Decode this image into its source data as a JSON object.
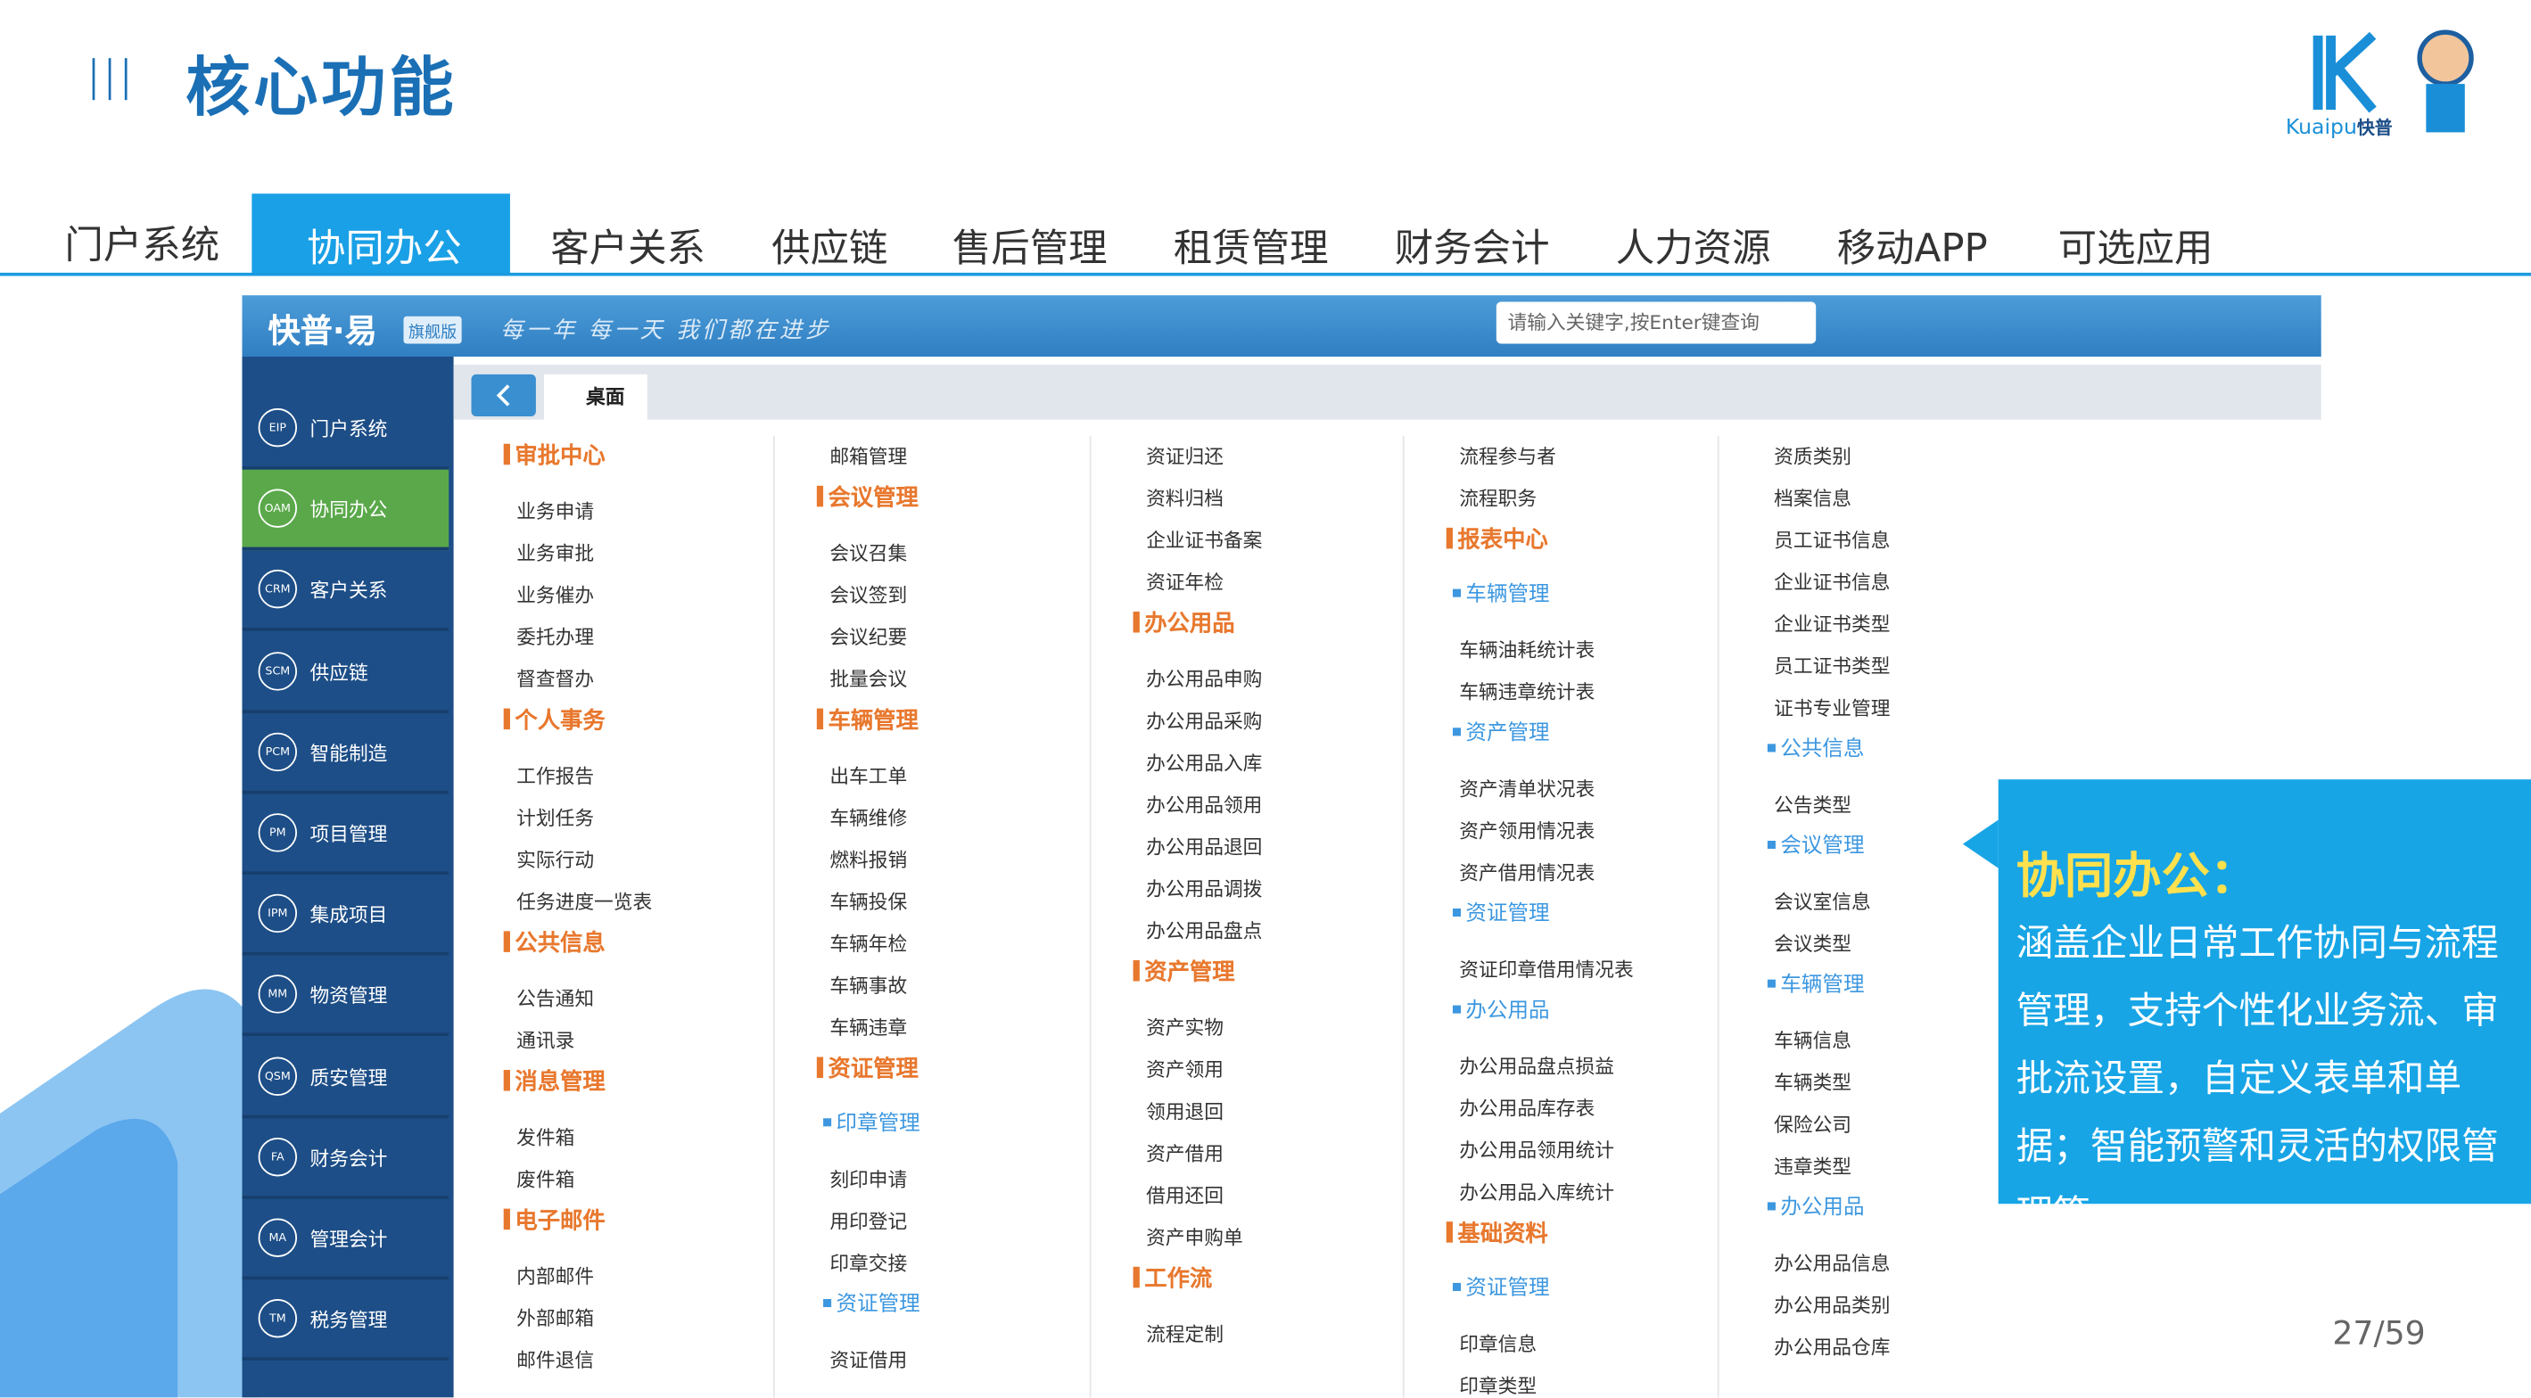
{
  "header": {
    "title": "核心功能",
    "logo_text": "Kuaipu",
    "logo_brand": "快普"
  },
  "tabs": {
    "items": [
      "门户系统",
      "协同办公",
      "客户关系",
      "供应链",
      "售后管理",
      "租赁管理",
      "财务会计",
      "人力资源",
      "移动APP",
      "可选应用"
    ],
    "active": 1
  },
  "app": {
    "brand": "快普·易",
    "edition": "旗舰版",
    "slogan": "每一年 每一天 我们都在进步",
    "search_placeholder": "请输入关键字,按Enter键查询",
    "desk_tab": "桌面"
  },
  "sidebar": {
    "active": 1,
    "items": [
      {
        "code": "EIP",
        "label": "门户系统"
      },
      {
        "code": "OAM",
        "label": "协同办公"
      },
      {
        "code": "CRM",
        "label": "客户关系"
      },
      {
        "code": "SCM",
        "label": "供应链"
      },
      {
        "code": "PCM",
        "label": "智能制造"
      },
      {
        "code": "PM",
        "label": "项目管理"
      },
      {
        "code": "IPM",
        "label": "集成项目"
      },
      {
        "code": "MM",
        "label": "物资管理"
      },
      {
        "code": "QSM",
        "label": "质安管理"
      },
      {
        "code": "FA",
        "label": "财务会计"
      },
      {
        "code": "MA",
        "label": "管理会计"
      },
      {
        "code": "TM",
        "label": "税务管理"
      }
    ]
  },
  "menu": {
    "columns": [
      [
        {
          "text": "审批中心",
          "kind": "h"
        },
        {
          "text": "业务申请",
          "kind": "i"
        },
        {
          "text": "业务审批",
          "kind": "i"
        },
        {
          "text": "业务催办",
          "kind": "i"
        },
        {
          "text": "委托办理",
          "kind": "i"
        },
        {
          "text": "督查督办",
          "kind": "i"
        },
        {
          "text": "个人事务",
          "kind": "h"
        },
        {
          "text": "工作报告",
          "kind": "i"
        },
        {
          "text": "计划任务",
          "kind": "i"
        },
        {
          "text": "实际行动",
          "kind": "i"
        },
        {
          "text": "任务进度一览表",
          "kind": "i"
        },
        {
          "text": "公共信息",
          "kind": "h"
        },
        {
          "text": "公告通知",
          "kind": "i"
        },
        {
          "text": "通讯录",
          "kind": "i"
        },
        {
          "text": "消息管理",
          "kind": "h"
        },
        {
          "text": "发件箱",
          "kind": "i"
        },
        {
          "text": "废件箱",
          "kind": "i"
        },
        {
          "text": "电子邮件",
          "kind": "h"
        },
        {
          "text": "内部邮件",
          "kind": "i"
        },
        {
          "text": "外部邮箱",
          "kind": "i"
        },
        {
          "text": "邮件退信",
          "kind": "i"
        }
      ],
      [
        {
          "text": "邮箱管理",
          "kind": "i"
        },
        {
          "text": "会议管理",
          "kind": "h"
        },
        {
          "text": "会议召集",
          "kind": "i"
        },
        {
          "text": "会议签到",
          "kind": "i"
        },
        {
          "text": "会议纪要",
          "kind": "i"
        },
        {
          "text": "批量会议",
          "kind": "i"
        },
        {
          "text": "车辆管理",
          "kind": "h"
        },
        {
          "text": "出车工单",
          "kind": "i"
        },
        {
          "text": "车辆维修",
          "kind": "i"
        },
        {
          "text": "燃料报销",
          "kind": "i"
        },
        {
          "text": "车辆投保",
          "kind": "i"
        },
        {
          "text": "车辆年检",
          "kind": "i"
        },
        {
          "text": "车辆事故",
          "kind": "i"
        },
        {
          "text": "车辆违章",
          "kind": "i"
        },
        {
          "text": "资证管理",
          "kind": "h"
        },
        {
          "text": "印章管理",
          "kind": "s"
        },
        {
          "text": "刻印申请",
          "kind": "i"
        },
        {
          "text": "用印登记",
          "kind": "i"
        },
        {
          "text": "印章交接",
          "kind": "i"
        },
        {
          "text": "资证管理",
          "kind": "s"
        },
        {
          "text": "资证借用",
          "kind": "i"
        }
      ],
      [
        {
          "text": "资证归还",
          "kind": "i"
        },
        {
          "text": "资料归档",
          "kind": "i"
        },
        {
          "text": "企业证书备案",
          "kind": "i"
        },
        {
          "text": "资证年检",
          "kind": "i"
        },
        {
          "text": "办公用品",
          "kind": "h"
        },
        {
          "text": "办公用品申购",
          "kind": "i"
        },
        {
          "text": "办公用品采购",
          "kind": "i"
        },
        {
          "text": "办公用品入库",
          "kind": "i"
        },
        {
          "text": "办公用品领用",
          "kind": "i"
        },
        {
          "text": "办公用品退回",
          "kind": "i"
        },
        {
          "text": "办公用品调拨",
          "kind": "i"
        },
        {
          "text": "办公用品盘点",
          "kind": "i"
        },
        {
          "text": "资产管理",
          "kind": "h"
        },
        {
          "text": "资产实物",
          "kind": "i"
        },
        {
          "text": "资产领用",
          "kind": "i"
        },
        {
          "text": "领用退回",
          "kind": "i"
        },
        {
          "text": "资产借用",
          "kind": "i"
        },
        {
          "text": "借用还回",
          "kind": "i"
        },
        {
          "text": "资产申购单",
          "kind": "i"
        },
        {
          "text": "工作流",
          "kind": "h"
        },
        {
          "text": "流程定制",
          "kind": "i"
        }
      ],
      [
        {
          "text": "流程参与者",
          "kind": "i"
        },
        {
          "text": "流程职务",
          "kind": "i"
        },
        {
          "text": "报表中心",
          "kind": "h"
        },
        {
          "text": "车辆管理",
          "kind": "s"
        },
        {
          "text": "车辆油耗统计表",
          "kind": "i"
        },
        {
          "text": "车辆违章统计表",
          "kind": "i"
        },
        {
          "text": "资产管理",
          "kind": "s"
        },
        {
          "text": "资产清单状况表",
          "kind": "i"
        },
        {
          "text": "资产领用情况表",
          "kind": "i"
        },
        {
          "text": "资产借用情况表",
          "kind": "i"
        },
        {
          "text": "资证管理",
          "kind": "s"
        },
        {
          "text": "资证印章借用情况表",
          "kind": "i"
        },
        {
          "text": "办公用品",
          "kind": "s"
        },
        {
          "text": "办公用品盘点损益",
          "kind": "i"
        },
        {
          "text": "办公用品库存表",
          "kind": "i"
        },
        {
          "text": "办公用品领用统计",
          "kind": "i"
        },
        {
          "text": "办公用品入库统计",
          "kind": "i"
        },
        {
          "text": "基础资料",
          "kind": "h"
        },
        {
          "text": "资证管理",
          "kind": "s"
        },
        {
          "text": "印章信息",
          "kind": "i"
        },
        {
          "text": "印章类型",
          "kind": "i"
        }
      ],
      [
        {
          "text": "资质类别",
          "kind": "i"
        },
        {
          "text": "档案信息",
          "kind": "i"
        },
        {
          "text": "员工证书信息",
          "kind": "i"
        },
        {
          "text": "企业证书信息",
          "kind": "i"
        },
        {
          "text": "企业证书类型",
          "kind": "i"
        },
        {
          "text": "员工证书类型",
          "kind": "i"
        },
        {
          "text": "证书专业管理",
          "kind": "i"
        },
        {
          "text": "公共信息",
          "kind": "s"
        },
        {
          "text": "公告类型",
          "kind": "i"
        },
        {
          "text": "会议管理",
          "kind": "s"
        },
        {
          "text": "会议室信息",
          "kind": "i"
        },
        {
          "text": "会议类型",
          "kind": "i"
        },
        {
          "text": "车辆管理",
          "kind": "s"
        },
        {
          "text": "车辆信息",
          "kind": "i"
        },
        {
          "text": "车辆类型",
          "kind": "i"
        },
        {
          "text": "保险公司",
          "kind": "i"
        },
        {
          "text": "违章类型",
          "kind": "i"
        },
        {
          "text": "办公用品",
          "kind": "s"
        },
        {
          "text": "办公用品信息",
          "kind": "i"
        },
        {
          "text": "办公用品类别",
          "kind": "i"
        },
        {
          "text": "办公用品仓库",
          "kind": "i"
        }
      ]
    ]
  },
  "callout": {
    "title": "协同办公：",
    "body": "涵盖企业日常工作协同与流程管理，支持个性化业务流、审批流设置，自定义表单和单据；智能预警和灵活的权限管理等。"
  },
  "page_number": "27/59"
}
